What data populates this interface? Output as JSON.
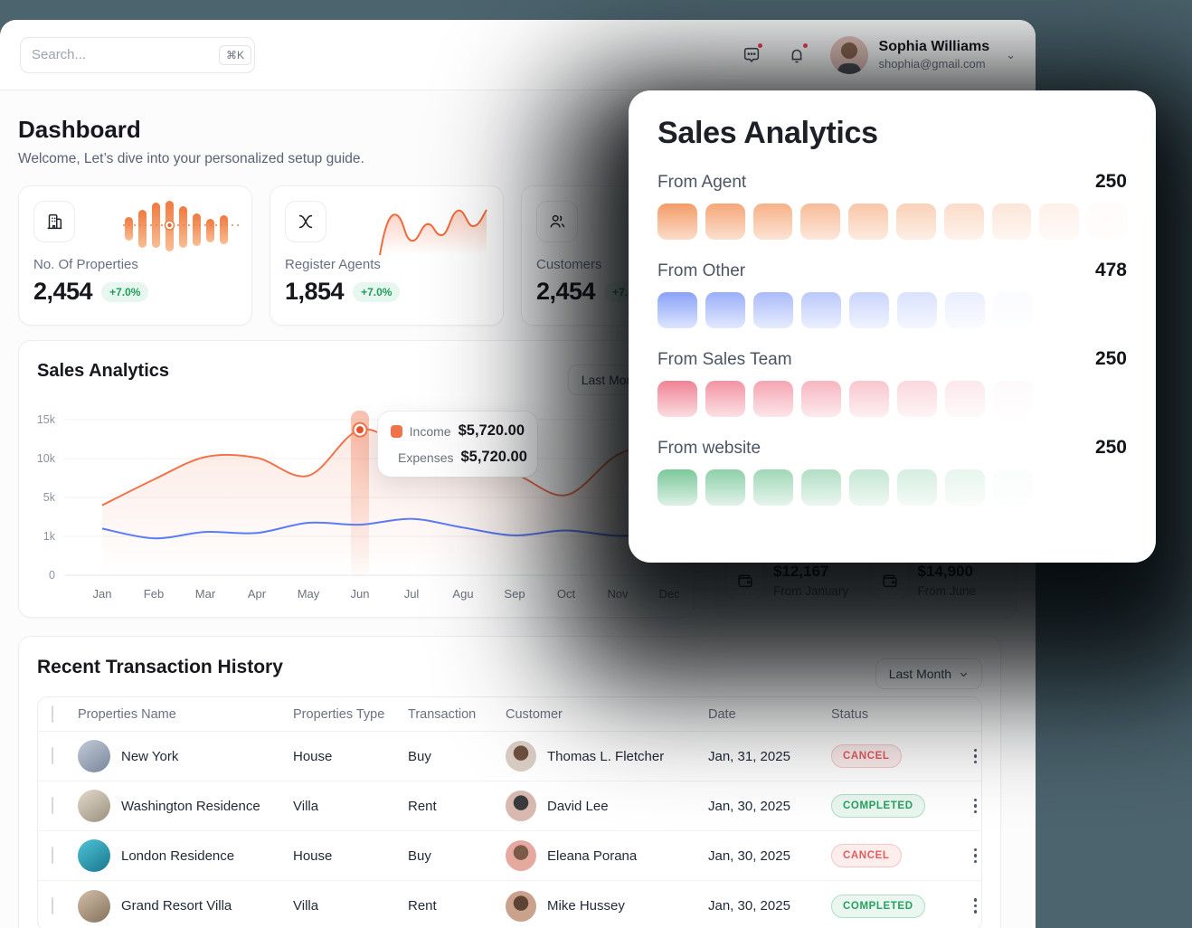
{
  "topbar": {
    "search_placeholder": "Search...",
    "search_shortcut": "⌘K",
    "user": {
      "name": "Sophia Williams",
      "email": "shophia@gmail.com"
    }
  },
  "page": {
    "title": "Dashboard",
    "subtitle": "Welcome, Let’s dive into your personalized setup guide."
  },
  "stats": [
    {
      "icon": "building-icon",
      "label": "No. Of Properties",
      "value": "2,454",
      "delta": "+7.0%"
    },
    {
      "icon": "ribbon-icon",
      "label": "Register Agents",
      "value": "1,854",
      "delta": "+7.0%"
    },
    {
      "icon": "users-icon",
      "label": "Customers",
      "value": "2,454",
      "delta": "+7.0%"
    }
  ],
  "sales_chart": {
    "title": "Sales Analytics",
    "range_label": "Last Month",
    "tooltip": {
      "income_label": "Income",
      "income_value": "$5,720.00",
      "expenses_label": "Expenses",
      "expenses_value": "$5,720.00"
    }
  },
  "chart_data": {
    "type": "line",
    "x": [
      "Jan",
      "Feb",
      "Mar",
      "Apr",
      "May",
      "Jun",
      "Jul",
      "Agu",
      "Sep",
      "Oct",
      "Nov",
      "Dec"
    ],
    "y_ticks": [
      "0",
      "1k",
      "5k",
      "10k",
      "15k"
    ],
    "y_tick_values": [
      0,
      1000,
      5000,
      10000,
      15000
    ],
    "highlight_month": "Jun",
    "legend_position": "tooltip",
    "grid": true,
    "series": [
      {
        "name": "Income",
        "color": "#F0744B",
        "values": [
          4200,
          7300,
          10200,
          10100,
          7800,
          13700,
          11000,
          9000,
          8000,
          5300,
          10500,
          12300
        ]
      },
      {
        "name": "Expenses",
        "color": "#5B7BF7",
        "values": [
          1800,
          950,
          1450,
          1350,
          2400,
          2200,
          2800,
          1900,
          1100,
          1600,
          1050,
          1300
        ]
      }
    ]
  },
  "wallet_stats": [
    {
      "value": "$12,167",
      "caption": "From January"
    },
    {
      "value": "$14,900",
      "caption": "From June"
    }
  ],
  "sales_panel": {
    "title": "Sales Analytics",
    "sections": [
      {
        "label": "From Agent",
        "value": "250",
        "swatches": 10,
        "color_top": "#F49C68",
        "color_bottom": "#FBDCC9"
      },
      {
        "label": "From Other",
        "value": "478",
        "swatches": 8,
        "color_top": "#8AA2F8",
        "color_bottom": "#DDE5FE"
      },
      {
        "label": "From Sales Team",
        "value": "250",
        "swatches": 8,
        "color_top": "#F08295",
        "color_bottom": "#FBDCE0"
      },
      {
        "label": "From website",
        "value": "250",
        "swatches": 8,
        "color_top": "#7BC89B",
        "color_bottom": "#DDF0E5"
      }
    ]
  },
  "transactions": {
    "title": "Recent Transaction History",
    "range_label": "Last Month",
    "columns": [
      "Properties Name",
      "Properties Type",
      "Transaction",
      "Customer",
      "Date",
      "Status"
    ],
    "rows": [
      {
        "name": "New York",
        "type": "House",
        "transaction": "Buy",
        "customer": "Thomas L. Fletcher",
        "date": "Jan, 31, 2025",
        "status": "CANCEL"
      },
      {
        "name": "Washington Residence",
        "type": "Villa",
        "transaction": "Rent",
        "customer": "David Lee",
        "date": "Jan, 30, 2025",
        "status": "COMPLETED"
      },
      {
        "name": "London Residence",
        "type": "House",
        "transaction": "Buy",
        "customer": "Eleana Porana",
        "date": "Jan, 30, 2025",
        "status": "CANCEL"
      },
      {
        "name": "Grand Resort Villa",
        "type": "Villa",
        "transaction": "Rent",
        "customer": "Mike Hussey",
        "date": "Jan, 30, 2025",
        "status": "COMPLETED"
      }
    ]
  }
}
